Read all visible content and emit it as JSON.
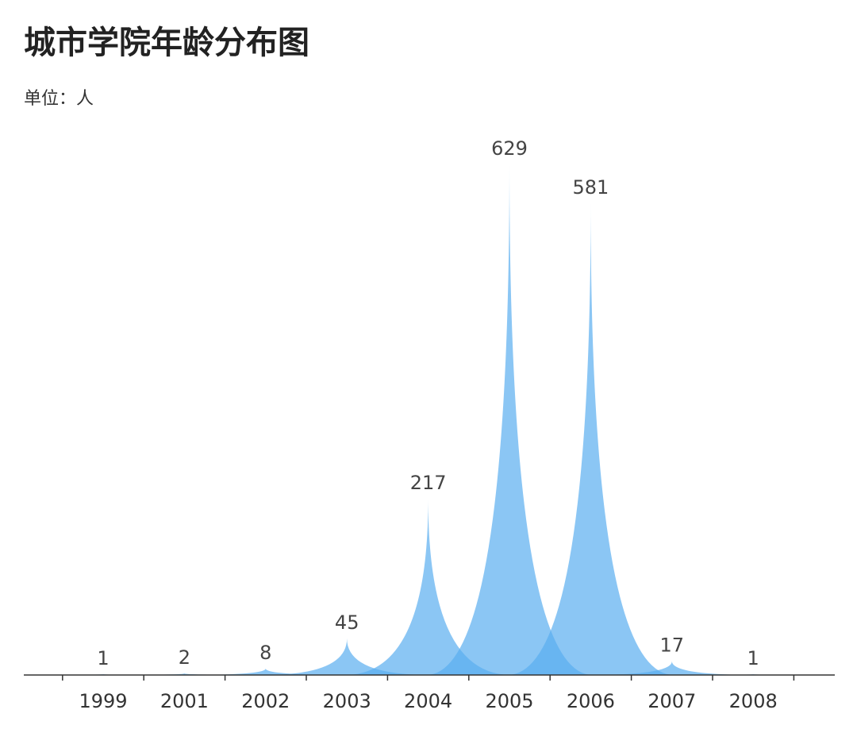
{
  "chart_data": {
    "type": "area",
    "title": "城市学院年龄分布图",
    "subtitle": "单位：人",
    "categories": [
      "1999",
      "2001",
      "2002",
      "2003",
      "2004",
      "2005",
      "2006",
      "2007",
      "2008"
    ],
    "series": [
      {
        "values": [
          1,
          2,
          8,
          45,
          217,
          629,
          581,
          17,
          1
        ]
      }
    ],
    "ylim": [
      0,
      629
    ],
    "grid": false,
    "legend": "none",
    "color": "#5aaef0",
    "baseline_color": "#333333"
  }
}
